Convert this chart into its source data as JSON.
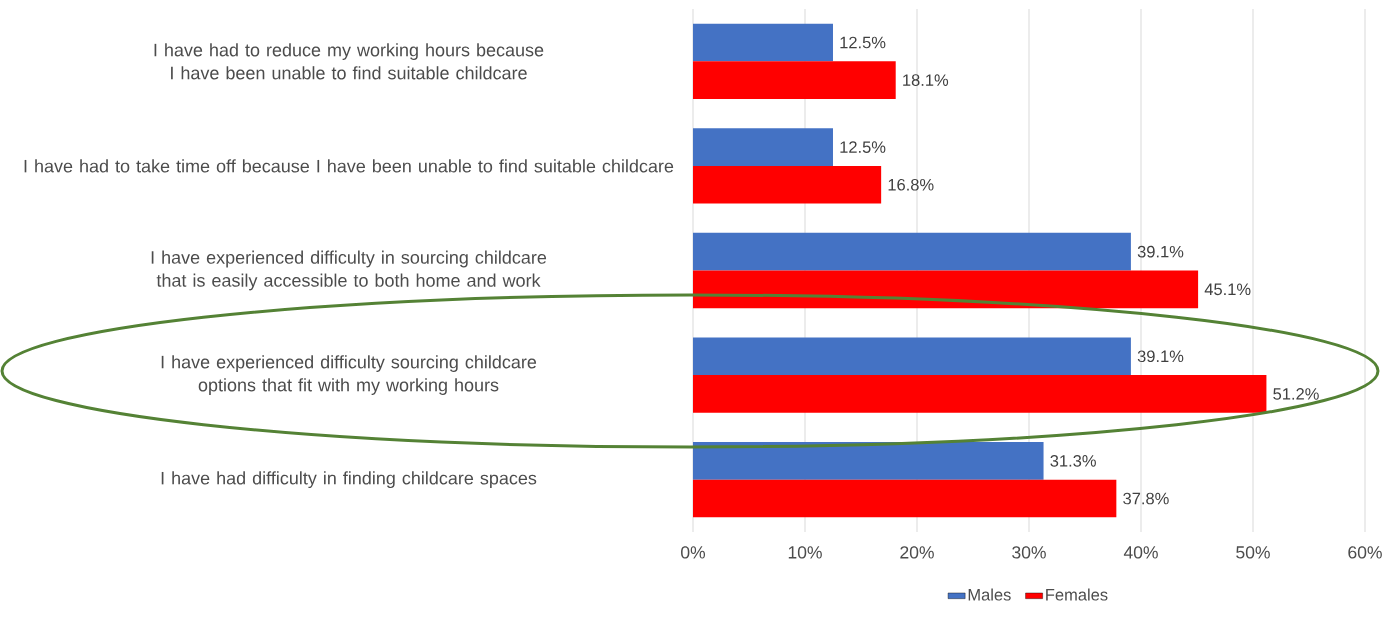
{
  "chart_data": {
    "type": "bar",
    "orientation": "horizontal",
    "categories": [
      "I have had to reduce my working hours because I have been unable to find suitable childcare",
      "I have had to take time off because I have been unable to find suitable childcare",
      "I have experienced difficulty in sourcing childcare that is easily accessible to both home and work",
      "I have experienced difficulty sourcing childcare options that fit with my working hours",
      "I have had difficulty in finding childcare spaces"
    ],
    "series": [
      {
        "name": "Males",
        "color": "#4472c4",
        "values": [
          12.5,
          12.5,
          39.1,
          39.1,
          31.3
        ],
        "value_labels": [
          "12.5%",
          "12.5%",
          "39.1%",
          "39.1%",
          "31.3%"
        ]
      },
      {
        "name": "Females",
        "color": "#ff0000",
        "values": [
          18.1,
          16.8,
          45.1,
          51.2,
          37.8
        ],
        "value_labels": [
          "18.1%",
          "16.8%",
          "45.1%",
          "51.2%",
          "37.8%"
        ]
      }
    ],
    "xlim": [
      0,
      60
    ],
    "xticks": [
      {
        "value": 0,
        "label": "0%"
      },
      {
        "value": 10,
        "label": "10%"
      },
      {
        "value": 20,
        "label": "20%"
      },
      {
        "value": 30,
        "label": "30%"
      },
      {
        "value": 40,
        "label": "40%"
      },
      {
        "value": 50,
        "label": "50%"
      },
      {
        "value": 60,
        "label": "60%"
      }
    ],
    "grid": "x",
    "legend": "bottom"
  }
}
